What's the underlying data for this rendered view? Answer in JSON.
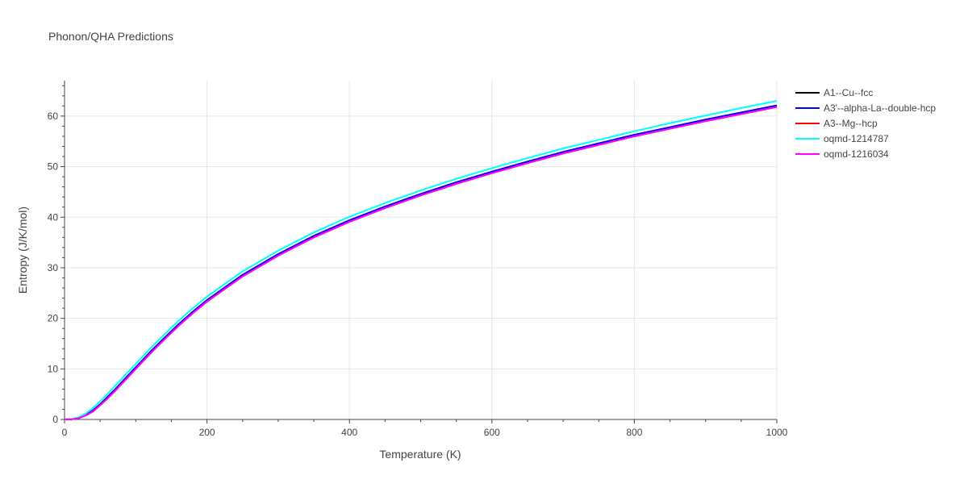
{
  "chart_data": {
    "type": "line",
    "title": "Phonon/QHA Predictions",
    "xlabel": "Temperature (K)",
    "ylabel": "Entropy (J/K/mol)",
    "xlim": [
      0,
      1000
    ],
    "ylim": [
      0,
      67
    ],
    "xticks": [
      0,
      200,
      400,
      600,
      800,
      1000
    ],
    "yticks": [
      0,
      10,
      20,
      30,
      40,
      50,
      60
    ],
    "grid": true,
    "legend_position": "right",
    "x": [
      0,
      10,
      20,
      30,
      40,
      50,
      60,
      70,
      80,
      90,
      100,
      120,
      140,
      160,
      180,
      200,
      250,
      300,
      350,
      400,
      450,
      500,
      550,
      600,
      650,
      700,
      750,
      800,
      850,
      900,
      950,
      1000
    ],
    "series": [
      {
        "name": "A1--Cu--fcc",
        "color": "#000000",
        "values": [
          0,
          0.05,
          0.3,
          0.9,
          1.8,
          3.0,
          4.4,
          5.8,
          7.3,
          8.8,
          10.3,
          13.3,
          16.1,
          18.8,
          21.3,
          23.6,
          28.6,
          32.7,
          36.3,
          39.4,
          42.1,
          44.6,
          46.9,
          49.0,
          51.0,
          52.9,
          54.6,
          56.3,
          57.8,
          59.3,
          60.7,
          62.1
        ]
      },
      {
        "name": "A3'--alpha-La--double-hcp",
        "color": "#0000ff",
        "values": [
          0,
          0.05,
          0.3,
          0.9,
          1.8,
          3.0,
          4.4,
          5.8,
          7.3,
          8.8,
          10.3,
          13.3,
          16.1,
          18.8,
          21.3,
          23.6,
          28.6,
          32.7,
          36.3,
          39.4,
          42.1,
          44.6,
          46.9,
          49.0,
          51.0,
          52.9,
          54.6,
          56.3,
          57.8,
          59.3,
          60.7,
          62.1
        ]
      },
      {
        "name": "A3--Mg--hcp",
        "color": "#ff0000",
        "values": [
          0,
          0.04,
          0.25,
          0.8,
          1.6,
          2.8,
          4.1,
          5.5,
          7.0,
          8.5,
          10.0,
          13.0,
          15.8,
          18.5,
          21.0,
          23.3,
          28.3,
          32.4,
          36.0,
          39.1,
          41.8,
          44.3,
          46.6,
          48.7,
          50.7,
          52.6,
          54.3,
          56.0,
          57.5,
          59.0,
          60.4,
          61.8
        ]
      },
      {
        "name": "oqmd-1214787",
        "color": "#00ffff",
        "values": [
          0,
          0.08,
          0.45,
          1.2,
          2.3,
          3.6,
          5.0,
          6.5,
          8.0,
          9.5,
          11.0,
          14.0,
          16.8,
          19.5,
          22.0,
          24.3,
          29.3,
          33.4,
          37.0,
          40.1,
          42.8,
          45.3,
          47.6,
          49.7,
          51.7,
          53.6,
          55.3,
          57.0,
          58.6,
          60.1,
          61.6,
          63.0
        ]
      },
      {
        "name": "oqmd-1216034",
        "color": "#ff00ff",
        "values": [
          0,
          0.04,
          0.25,
          0.8,
          1.6,
          2.8,
          4.1,
          5.5,
          7.0,
          8.5,
          10.0,
          13.0,
          15.8,
          18.5,
          21.0,
          23.3,
          28.3,
          32.4,
          36.0,
          39.1,
          41.8,
          44.3,
          46.6,
          48.7,
          50.7,
          52.6,
          54.3,
          56.0,
          57.5,
          59.0,
          60.4,
          61.8
        ]
      }
    ]
  }
}
